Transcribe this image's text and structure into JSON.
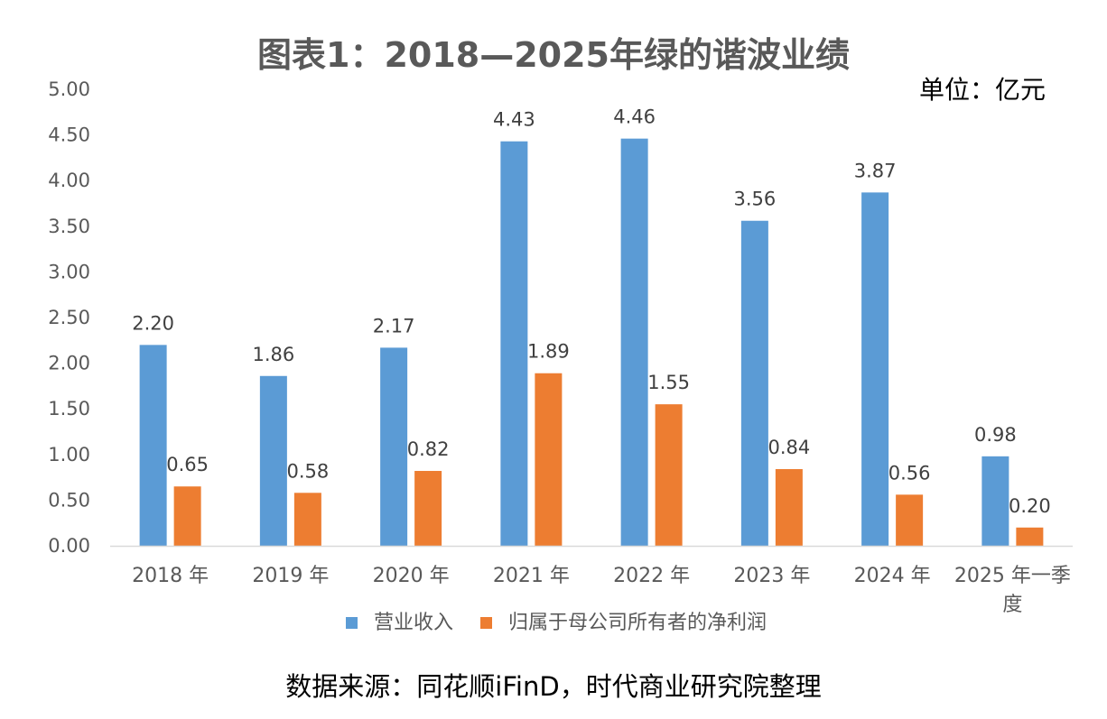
{
  "title": "图表1：2018—2025年绿的谐波业绩",
  "unit_label": "单位：亿元",
  "source_note": "数据来源：同花顺iFinD，时代商业研究院整理",
  "chart_data": {
    "type": "bar",
    "categories": [
      "2018 年",
      "2019 年",
      "2020 年",
      "2021 年",
      "2022 年",
      "2023 年",
      "2024 年",
      "2025 年一季度"
    ],
    "series": [
      {
        "name": "营业收入",
        "values": [
          2.2,
          1.86,
          2.17,
          4.43,
          4.46,
          3.56,
          3.87,
          0.98
        ],
        "color": "#5B9BD5"
      },
      {
        "name": "归属于母公司所有者的净利润",
        "values": [
          0.65,
          0.58,
          0.82,
          1.89,
          1.55,
          0.84,
          0.56,
          0.2
        ],
        "color": "#ED7D31"
      }
    ],
    "ylim": [
      0,
      5
    ],
    "yticks": [
      "0.00",
      "0.50",
      "1.00",
      "1.50",
      "2.00",
      "2.50",
      "3.00",
      "3.50",
      "4.00",
      "4.50",
      "5.00"
    ],
    "value_format_decimals": 2,
    "grid": false,
    "legend": "bottom"
  }
}
